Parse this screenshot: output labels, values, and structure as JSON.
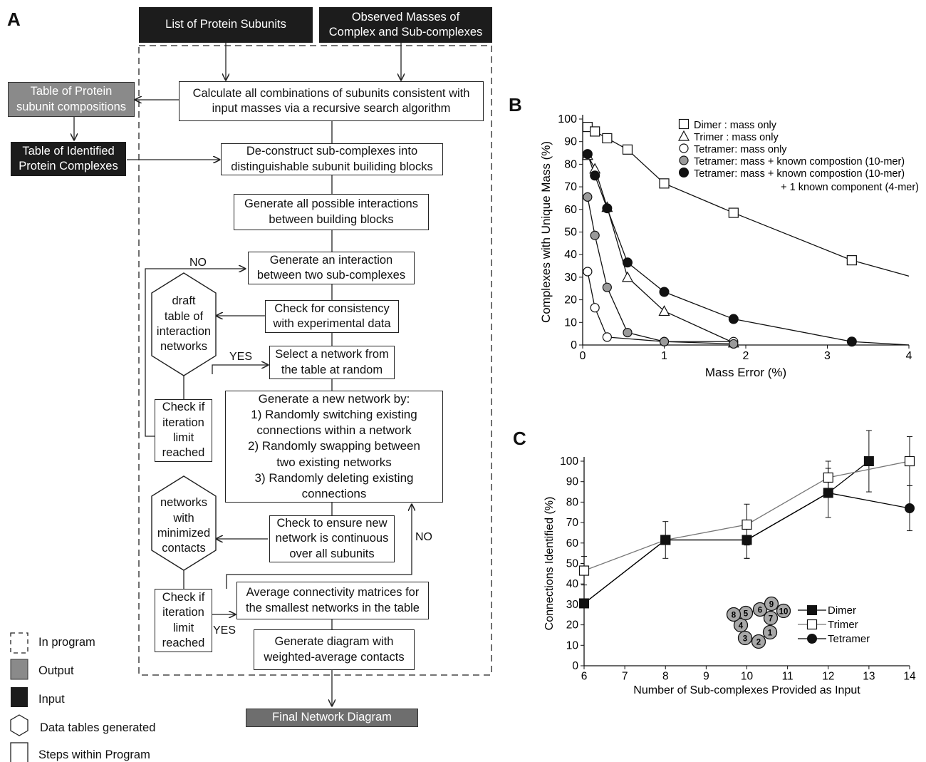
{
  "panel_labels": {
    "a": "A",
    "b": "B",
    "c": "C"
  },
  "flowchart": {
    "inputs": {
      "subunits": "List of  Protein Subunits",
      "masses": "Observed Masses of\nComplex and Sub-complexes"
    },
    "outputs": {
      "compositions": "Table of  Protein\nsubunit compositions",
      "identified": "Table of Identified\nProtein Complexes",
      "final": "Final Network Diagram"
    },
    "steps": {
      "calculate": "Calculate all combinations of subunits consistent with\ninput masses via a recursive search algorithm",
      "deconstruct": "De-construct sub-complexes into\ndistinguishable subunit builiding blocks",
      "generate_all": "Generate all possible interactions\nbetween building blocks",
      "generate_one": "Generate an interaction\nbetween two sub-complexes",
      "check_consistency": "Check for consistency\nwith experimental data",
      "select_network": "Select a network from\nthe table at random",
      "new_network": "Generate a new network by:\n1) Randomly switching existing\nconnections within a network\n2)  Randomly swapping between\ntwo existing networks\n3) Randomly deleting existing\nconnections",
      "check_continuous": "Check to ensure new\nnetwork is continuous\nover all subunits",
      "iteration1": "Check if\niteration\nlimit\nreached",
      "iteration2": "Check if\niteration\nlimit\nreached",
      "average": "Average connectivity matrices for\nthe smallest networks in the table",
      "diagram": "Generate diagram with\nweighted-average contacts"
    },
    "data_tables": {
      "draft": "draft\ntable of\ninteraction\nnetworks",
      "minimized": "networks\nwith\nminimized\ncontacts"
    },
    "branch_labels": {
      "no1": "NO",
      "yes1": "YES",
      "no2": "NO",
      "yes2": "YES"
    },
    "legend": {
      "in_program": "In program",
      "output": "Output",
      "input": "Input",
      "data_tables": "Data tables generated",
      "steps": "Steps within Program"
    }
  },
  "chart_data": [
    {
      "panel": "B",
      "type": "line",
      "xlabel": "Mass Error (%)",
      "ylabel": "Complexes with Unique Mass (%)",
      "xlim": [
        0,
        4
      ],
      "ylim": [
        0,
        100
      ],
      "xticks": [
        "0",
        "1",
        "2",
        "3",
        "4"
      ],
      "yticks": [
        "0",
        "10",
        "20",
        "30",
        "40",
        "50",
        "60",
        "70",
        "80",
        "90",
        "100"
      ],
      "legend_position": "top-right",
      "series": [
        {
          "name": "Dimer  :    mass only",
          "marker": "open-square",
          "color": "#ffffff",
          "x": [
            0.06,
            0.15,
            0.3,
            0.55,
            1.0,
            1.85,
            3.3,
            4.0
          ],
          "y": [
            96.5,
            94.5,
            91.5,
            86.5,
            71.5,
            58.5,
            37.5,
            30.5
          ]
        },
        {
          "name": "Trimer :    mass only",
          "marker": "open-triangle",
          "color": "#ffffff",
          "x": [
            0.06,
            0.15,
            0.3,
            0.55,
            1.0,
            1.85
          ],
          "y": [
            84,
            78,
            61,
            30,
            15,
            1
          ]
        },
        {
          "name": "Tetramer: mass only",
          "marker": "open-circle",
          "color": "#ffffff",
          "x": [
            0.06,
            0.15,
            0.3,
            1.0,
            1.85
          ],
          "y": [
            32.5,
            16.5,
            3.5,
            1.5,
            1.5
          ]
        },
        {
          "name": "Tetramer: mass +    known compostion  (10-mer)",
          "marker": "gray-circle",
          "color": "#9a9a9a",
          "x": [
            0.06,
            0.15,
            0.3,
            0.55,
            1.0,
            1.85
          ],
          "y": [
            65.5,
            48.5,
            25.5,
            5.5,
            1.5,
            0.5
          ]
        },
        {
          "name": "Tetramer: mass +    known compostion  (10-mer)\n+ 1  known component  (4-mer)",
          "marker": "black-circle",
          "color": "#000000",
          "x": [
            0.06,
            0.15,
            0.3,
            0.55,
            1.0,
            1.85,
            3.3,
            4.0
          ],
          "y": [
            84.5,
            75,
            60.5,
            36.5,
            23.5,
            11.5,
            1.5,
            0
          ]
        }
      ]
    },
    {
      "panel": "C",
      "type": "line",
      "xlabel": "Number of Sub-complexes Provided as Input",
      "ylabel": "Connections Identified (%)",
      "xlim": [
        6,
        14
      ],
      "ylim": [
        0,
        100
      ],
      "xticks": [
        "6",
        "7",
        "8",
        "9",
        "10",
        "11",
        "12",
        "13",
        "14"
      ],
      "yticks": [
        "0",
        "10",
        "20",
        "30",
        "40",
        "50",
        "60",
        "70",
        "80",
        "90",
        "100"
      ],
      "legend_position": "bottom-right",
      "series": [
        {
          "name": "Dimer",
          "marker": "black-square",
          "color": "#000000",
          "x": [
            6,
            8,
            10,
            12,
            13
          ],
          "y": [
            30.5,
            61.5,
            61.5,
            84.5,
            100
          ],
          "err": [
            0,
            9,
            9,
            12,
            15
          ]
        },
        {
          "name": "Trimer",
          "marker": "open-square",
          "color": "#777777",
          "x": [
            6,
            8,
            10,
            12,
            14
          ],
          "y": [
            46.5,
            61.5,
            69,
            92,
            100
          ],
          "err": [
            7,
            0,
            10,
            8,
            12
          ]
        },
        {
          "name": "Tetramer",
          "marker": "black-circle",
          "color": "#000000",
          "x": [
            6,
            8,
            10,
            12,
            14
          ],
          "y": [
            30.5,
            61.5,
            61.5,
            84.5,
            77
          ],
          "err": [
            0,
            0,
            9,
            0,
            11
          ]
        }
      ],
      "inset_nodes": [
        "1",
        "2",
        "3",
        "4",
        "5",
        "6",
        "7",
        "8",
        "9",
        "10"
      ]
    }
  ]
}
